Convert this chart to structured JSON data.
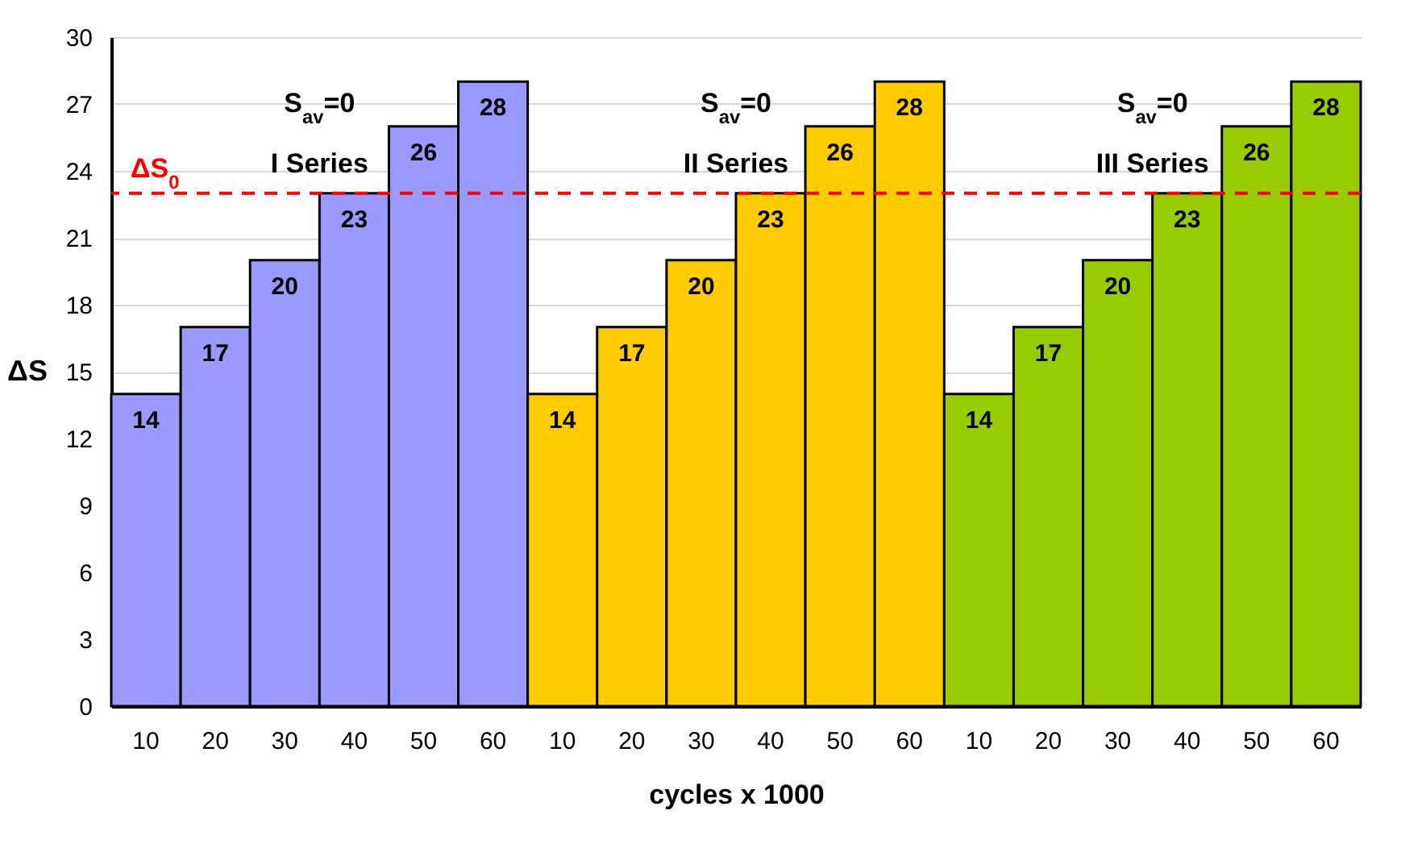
{
  "chart_data": {
    "type": "bar",
    "xlabel": "cycles x 1000",
    "ylabel": "ΔS",
    "categories": [
      "10",
      "20",
      "30",
      "40",
      "50",
      "60",
      "10",
      "20",
      "30",
      "40",
      "50",
      "60",
      "10",
      "20",
      "30",
      "40",
      "50",
      "60"
    ],
    "series": [
      {
        "name": "I Series",
        "color": "#9999ff",
        "values": [
          14,
          17,
          20,
          23,
          26,
          28,
          null,
          null,
          null,
          null,
          null,
          null,
          null,
          null,
          null,
          null,
          null,
          null
        ]
      },
      {
        "name": "II Series",
        "color": "#ffcc00",
        "values": [
          null,
          null,
          null,
          null,
          null,
          null,
          14,
          17,
          20,
          23,
          26,
          28,
          null,
          null,
          null,
          null,
          null,
          null
        ]
      },
      {
        "name": "III Series",
        "color": "#99cc00",
        "values": [
          null,
          null,
          null,
          null,
          null,
          null,
          null,
          null,
          null,
          null,
          null,
          null,
          14,
          17,
          20,
          23,
          26,
          28
        ]
      }
    ],
    "annotations": [
      "S$_{av}$=0",
      "S$_{av}$=0",
      "S$_{av}$=0"
    ],
    "ref_lines": [
      {
        "axis": "y",
        "value": 23,
        "label": "ΔS$_{0}$",
        "color": "#ff0000",
        "line_style": "dashed"
      }
    ],
    "ylim": [
      0,
      30
    ],
    "yticks": [
      0,
      3,
      6,
      9,
      12,
      15,
      18,
      21,
      24,
      27,
      30
    ],
    "grid": "y",
    "data_labels": true,
    "legend": false
  }
}
